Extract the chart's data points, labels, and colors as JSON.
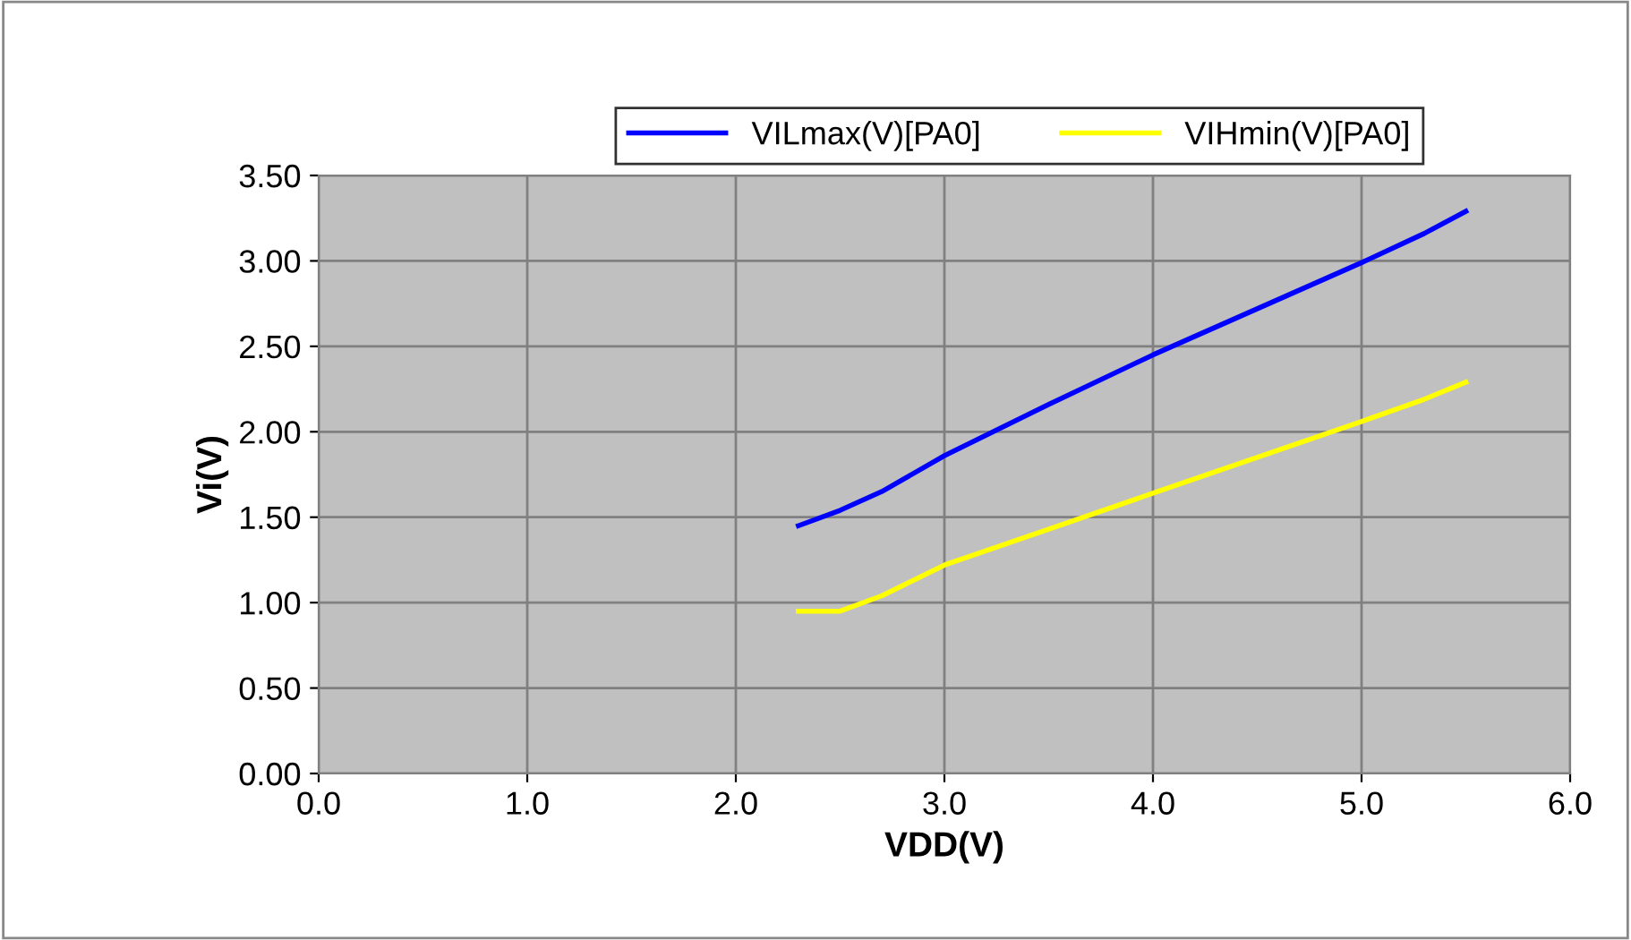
{
  "chart_data": {
    "type": "line",
    "xlabel": "VDD(V)",
    "ylabel": "Vi(V)",
    "xlim": [
      0,
      6
    ],
    "xticks": [
      {
        "value": 0,
        "label": "0.0"
      },
      {
        "value": 1,
        "label": "1.0"
      },
      {
        "value": 2,
        "label": "2.0"
      },
      {
        "value": 3,
        "label": "3.0"
      },
      {
        "value": 4,
        "label": "4.0"
      },
      {
        "value": 5,
        "label": "5.0"
      },
      {
        "value": 6,
        "label": "6.0"
      }
    ],
    "ylim": [
      0,
      3.5
    ],
    "yticks": [
      {
        "value": 0,
        "label": "0.00"
      },
      {
        "value": 0.5,
        "label": "0.50"
      },
      {
        "value": 1,
        "label": "1.00"
      },
      {
        "value": 1.5,
        "label": "1.50"
      },
      {
        "value": 2,
        "label": "2.00"
      },
      {
        "value": 2.5,
        "label": "2.50"
      },
      {
        "value": 3,
        "label": "3.00"
      },
      {
        "value": 3.5,
        "label": "3.50"
      }
    ],
    "x": [
      2.3,
      2.5,
      2.7,
      3.0,
      3.5,
      4.0,
      4.5,
      5.0,
      5.3,
      5.5
    ],
    "series": [
      {
        "name": "VILmax(V)[PA0]",
        "color": "#0000ff",
        "values": [
          1.45,
          1.54,
          1.65,
          1.86,
          2.16,
          2.45,
          2.72,
          2.99,
          3.16,
          3.29
        ]
      },
      {
        "name": "VIHmin(V)[PA0]",
        "color": "#ffff00",
        "values": [
          0.95,
          0.95,
          1.04,
          1.22,
          1.43,
          1.64,
          1.85,
          2.06,
          2.19,
          2.29
        ]
      }
    ],
    "grid": true,
    "legend": "top",
    "marker": "none",
    "line_style": "solid"
  }
}
